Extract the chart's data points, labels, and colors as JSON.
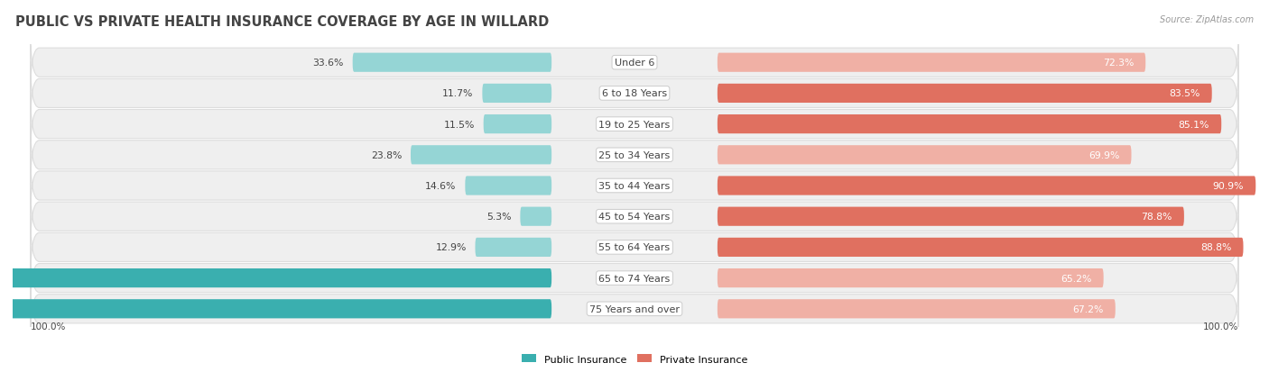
{
  "title": "PUBLIC VS PRIVATE HEALTH INSURANCE COVERAGE BY AGE IN WILLARD",
  "source": "Source: ZipAtlas.com",
  "categories": [
    "Under 6",
    "6 to 18 Years",
    "19 to 25 Years",
    "25 to 34 Years",
    "35 to 44 Years",
    "45 to 54 Years",
    "55 to 64 Years",
    "65 to 74 Years",
    "75 Years and over"
  ],
  "public_values": [
    33.6,
    11.7,
    11.5,
    23.8,
    14.6,
    5.3,
    12.9,
    100.0,
    100.0
  ],
  "private_values": [
    72.3,
    83.5,
    85.1,
    69.9,
    90.9,
    78.8,
    88.8,
    65.2,
    67.2
  ],
  "public_color_dark": "#3AAFAF",
  "public_color_light": "#95D5D5",
  "private_color_dark": "#E07060",
  "private_color_light": "#F0B0A5",
  "row_bg_color": "#EFEFEF",
  "row_border_color": "#DDDDDD",
  "max_value": 100.0,
  "legend_public": "Public Insurance",
  "legend_private": "Private Insurance",
  "title_fontsize": 10.5,
  "label_fontsize": 8.0,
  "tick_fontsize": 7.5,
  "annotation_fontsize": 7.8,
  "title_color": "#444444",
  "source_color": "#999999",
  "text_color_dark": "#444444",
  "text_color_white": "#FFFFFF",
  "public_dark_threshold": 50.0,
  "private_dark_threshold": 75.0
}
